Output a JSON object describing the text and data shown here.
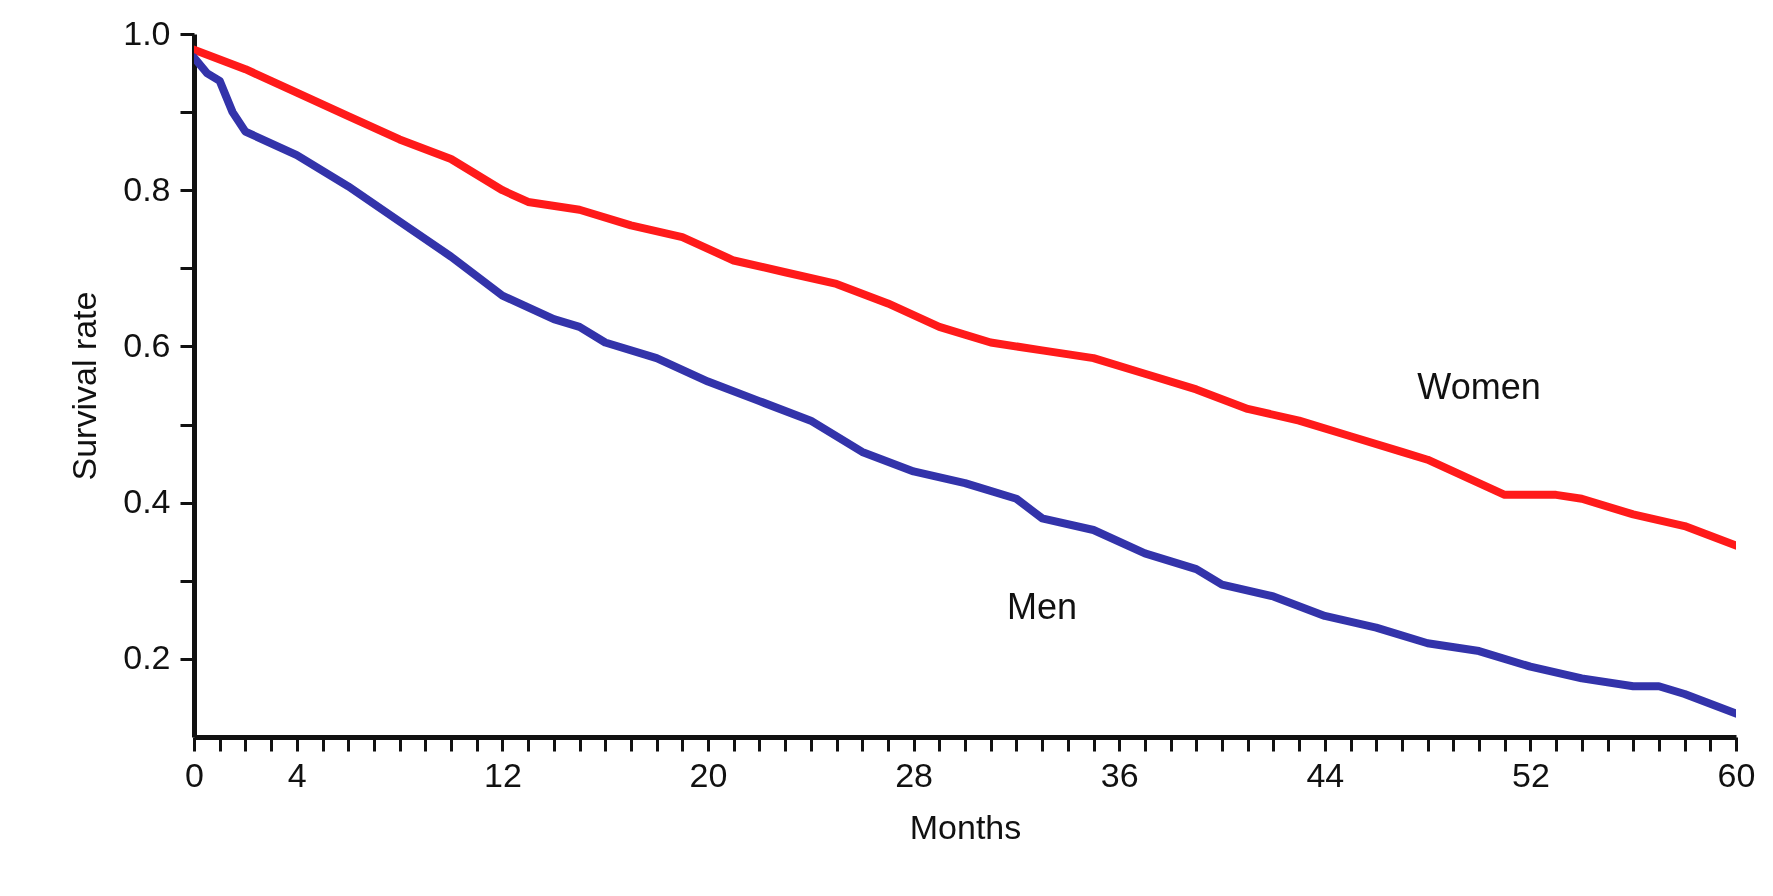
{
  "chart_data": {
    "type": "line",
    "xlabel": "Months",
    "ylabel": "Survival rate",
    "xlim": [
      0,
      60
    ],
    "ylim": [
      0.1,
      1.0
    ],
    "xticks": [
      0,
      {
        "value": 1,
        "label": null
      },
      {
        "value": 2,
        "label": null
      },
      {
        "value": 3,
        "label": null
      },
      4,
      {
        "value": 5,
        "label": null
      },
      {
        "value": 6,
        "label": null
      },
      {
        "value": 7,
        "label": null
      },
      {
        "value": 8,
        "label": null
      },
      {
        "value": 9,
        "label": null
      },
      {
        "value": 10,
        "label": null
      },
      {
        "value": 11,
        "label": null
      },
      12,
      {
        "value": 13,
        "label": null
      },
      {
        "value": 14,
        "label": null
      },
      {
        "value": 15,
        "label": null
      },
      {
        "value": 16,
        "label": null
      },
      {
        "value": 17,
        "label": null
      },
      {
        "value": 18,
        "label": null
      },
      {
        "value": 19,
        "label": null
      },
      20,
      {
        "value": 21,
        "label": null
      },
      {
        "value": 22,
        "label": null
      },
      {
        "value": 23,
        "label": null
      },
      {
        "value": 24,
        "label": null
      },
      {
        "value": 25,
        "label": null
      },
      {
        "value": 26,
        "label": null
      },
      {
        "value": 27,
        "label": null
      },
      28,
      {
        "value": 29,
        "label": null
      },
      {
        "value": 30,
        "label": null
      },
      {
        "value": 31,
        "label": null
      },
      {
        "value": 32,
        "label": null
      },
      {
        "value": 33,
        "label": null
      },
      {
        "value": 34,
        "label": null
      },
      {
        "value": 35,
        "label": null
      },
      36,
      {
        "value": 37,
        "label": null
      },
      {
        "value": 38,
        "label": null
      },
      {
        "value": 39,
        "label": null
      },
      {
        "value": 40,
        "label": null
      },
      {
        "value": 41,
        "label": null
      },
      {
        "value": 42,
        "label": null
      },
      {
        "value": 43,
        "label": null
      },
      44,
      {
        "value": 45,
        "label": null
      },
      {
        "value": 46,
        "label": null
      },
      {
        "value": 47,
        "label": null
      },
      {
        "value": 48,
        "label": null
      },
      {
        "value": 49,
        "label": null
      },
      {
        "value": 50,
        "label": null
      },
      {
        "value": 51,
        "label": null
      },
      52,
      {
        "value": 53,
        "label": null
      },
      {
        "value": 54,
        "label": null
      },
      {
        "value": 55,
        "label": null
      },
      {
        "value": 56,
        "label": null
      },
      {
        "value": 57,
        "label": null
      },
      {
        "value": 58,
        "label": null
      },
      {
        "value": 59,
        "label": null
      },
      60
    ],
    "yticks": [
      0.2,
      {
        "value": 0.3,
        "label": null
      },
      0.4,
      {
        "value": 0.5,
        "label": null
      },
      0.6,
      {
        "value": 0.7,
        "label": null
      },
      0.8,
      {
        "value": 0.9,
        "label": null
      },
      {
        "value": 1,
        "label": "1.0"
      }
    ],
    "grid": false,
    "legend": false,
    "marker": "none",
    "line_style": "solid",
    "series": [
      {
        "name": "Women",
        "color": "#ff1a1a",
        "x": [
          0,
          2,
          4,
          6,
          8,
          10,
          12,
          13,
          15,
          17,
          19,
          21,
          23,
          25,
          27,
          29,
          31,
          33,
          35,
          37,
          39,
          41,
          43,
          45,
          47,
          48,
          50,
          51,
          53,
          54,
          56,
          58,
          60
        ],
        "values": [
          0.98,
          0.955,
          0.925,
          0.895,
          0.865,
          0.84,
          0.8,
          0.785,
          0.775,
          0.755,
          0.74,
          0.71,
          0.695,
          0.68,
          0.655,
          0.625,
          0.605,
          0.595,
          0.585,
          0.565,
          0.545,
          0.52,
          0.505,
          0.485,
          0.465,
          0.455,
          0.425,
          0.41,
          0.41,
          0.405,
          0.385,
          0.37,
          0.345
        ]
      },
      {
        "name": "Men",
        "color": "#3333aa",
        "x": [
          0,
          0.5,
          1,
          1.5,
          2,
          4,
          6,
          8,
          10,
          12,
          14,
          15,
          16,
          18,
          20,
          22,
          24,
          26,
          28,
          30,
          32,
          33,
          35,
          37,
          39,
          40,
          42,
          44,
          46,
          48,
          50,
          52,
          54,
          56,
          57,
          58,
          60
        ],
        "values": [
          0.97,
          0.95,
          0.94,
          0.9,
          0.875,
          0.845,
          0.805,
          0.76,
          0.715,
          0.665,
          0.635,
          0.625,
          0.605,
          0.585,
          0.555,
          0.53,
          0.505,
          0.465,
          0.44,
          0.425,
          0.405,
          0.38,
          0.365,
          0.335,
          0.315,
          0.295,
          0.28,
          0.255,
          0.24,
          0.22,
          0.21,
          0.19,
          0.175,
          0.165,
          0.165,
          0.155,
          0.13
        ]
      }
    ]
  }
}
